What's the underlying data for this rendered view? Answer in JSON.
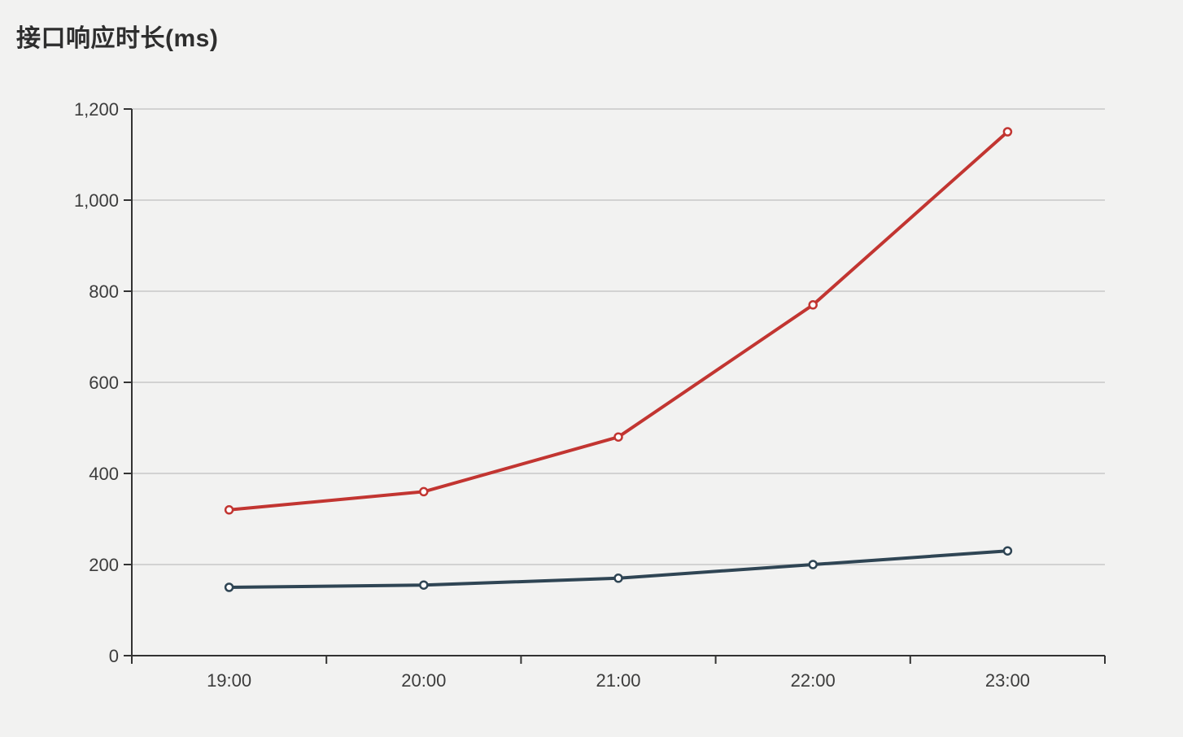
{
  "page": {
    "title": "接口响应时长(ms)"
  },
  "theme": {
    "background": "#f2f2f1",
    "grid_line": "#d2d2d2",
    "axis_line": "#333333",
    "tick_label_color": "#3c3c3c",
    "title_color": "#2e2e2e",
    "marker_fill": "#ffffff",
    "series_red": "#c23531",
    "series_dark": "#2f4554"
  },
  "chart_data": {
    "type": "line",
    "title": "接口响应时长(ms)",
    "xlabel": "",
    "ylabel": "",
    "categories": [
      "19:00",
      "20:00",
      "21:00",
      "22:00",
      "23:00"
    ],
    "series": [
      {
        "id": "series-red",
        "color": "#c23531",
        "values": [
          320,
          360,
          480,
          770,
          1150
        ]
      },
      {
        "id": "series-dark",
        "color": "#2f4554",
        "values": [
          150,
          155,
          170,
          200,
          230
        ]
      }
    ],
    "ylim": [
      0,
      1200
    ],
    "y_tick_step": 200,
    "y_tick_labels": [
      "0",
      "200",
      "400",
      "600",
      "800",
      "1,000",
      "1,200"
    ],
    "grid": true,
    "legend": "none",
    "marker": "hollow-circle",
    "line_width": 4
  }
}
